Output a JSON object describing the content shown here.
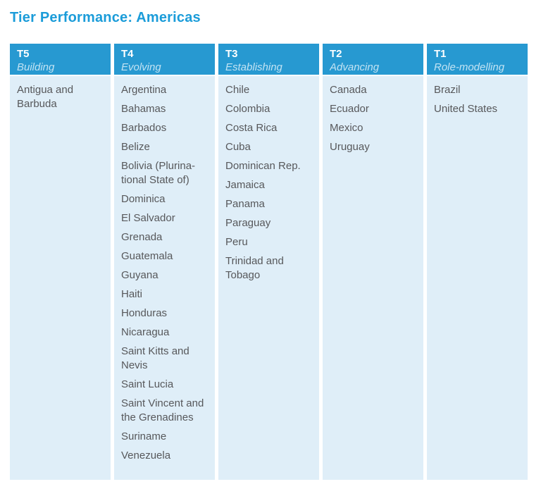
{
  "title": "Tier Performance: Americas",
  "colors": {
    "title_text": "#1B9CD9",
    "header_bg": "#2799D1",
    "header_tier_text": "#FFFFFF",
    "header_stage_text": "#C2E3F3",
    "cell_bg": "#DFEEF8",
    "cell_text": "#57585B"
  },
  "table": {
    "columns": [
      {
        "tier": "T5",
        "stage": "Building",
        "countries": [
          "Antigua and Barbuda"
        ]
      },
      {
        "tier": "T4",
        "stage": "Evolving",
        "countries": [
          "Argentina",
          "Bahamas",
          "Barbados",
          "Belize",
          "Bolivia (Plurina­tional State of)",
          "Dominica",
          "El Salvador",
          "Grenada",
          "Guatemala",
          "Guyana",
          "Haiti",
          "Honduras",
          "Nicaragua",
          "Saint Kitts and Nevis",
          "Saint Lucia",
          "Saint Vincent and the Grena­dines",
          "Suriname",
          "Venezuela"
        ]
      },
      {
        "tier": "T3",
        "stage": "Establishing",
        "countries": [
          "Chile",
          "Colombia",
          "Costa Rica",
          "Cuba",
          "Dominican Rep.",
          "Jamaica",
          "Panama",
          "Paraguay",
          "Peru",
          "Trinidad and Tobago"
        ]
      },
      {
        "tier": "T2",
        "stage": "Advancing",
        "countries": [
          "Canada",
          "Ecuador",
          "Mexico",
          "Uruguay"
        ]
      },
      {
        "tier": "T1",
        "stage": "Role-modelling",
        "countries": [
          "Brazil",
          "United States"
        ]
      }
    ]
  }
}
